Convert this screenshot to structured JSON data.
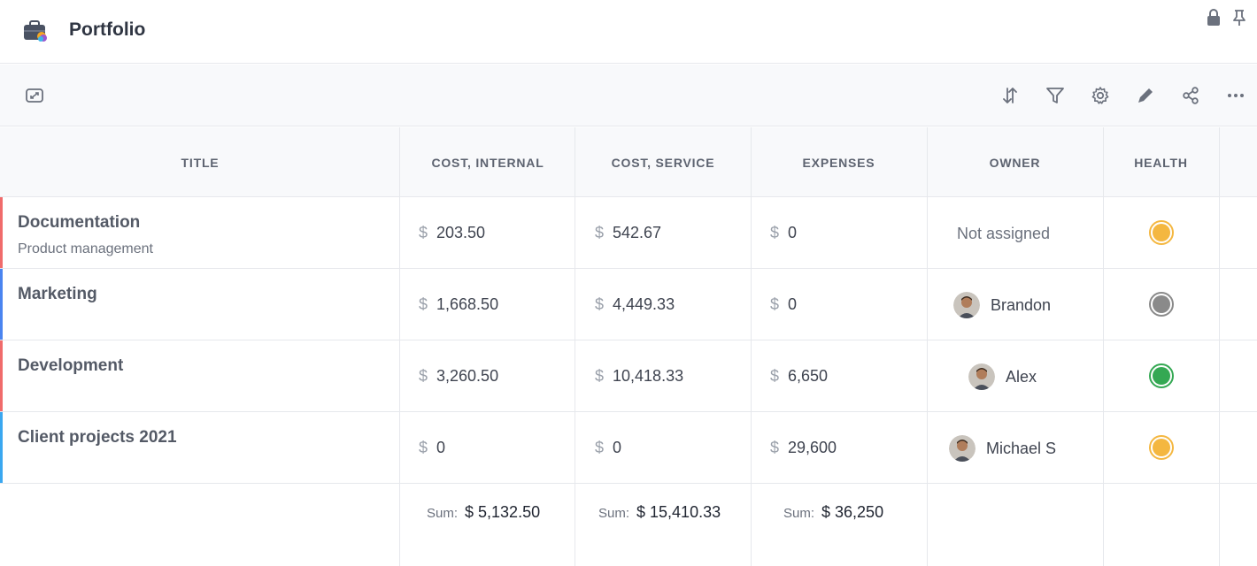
{
  "app": {
    "title": "Portfolio",
    "icon": "briefcase-icon"
  },
  "window_controls": [
    {
      "icon": "lock-icon"
    },
    {
      "icon": "pin-icon"
    }
  ],
  "toolbar": {
    "left": [
      {
        "icon": "expand-icon"
      }
    ],
    "right": [
      {
        "icon": "sort-icon"
      },
      {
        "icon": "filter-icon"
      },
      {
        "icon": "gear-icon"
      },
      {
        "icon": "pencil-icon"
      },
      {
        "icon": "share-icon"
      },
      {
        "icon": "more-icon"
      }
    ]
  },
  "table": {
    "columns": [
      "TITLE",
      "COST, INTERNAL",
      "COST, SERVICE",
      "EXPENSES",
      "OWNER",
      "HEALTH"
    ],
    "currency": "$",
    "rows": [
      {
        "title": "Documentation",
        "subtitle": "Product management",
        "accent": "#f06b6b",
        "cost_internal": "203.50",
        "cost_service": "542.67",
        "expenses": "0",
        "owner": "Not assigned",
        "owner_assigned": false,
        "health_color": "#f4b740"
      },
      {
        "title": "Marketing",
        "subtitle": "",
        "accent": "#4a84f0",
        "cost_internal": "1,668.50",
        "cost_service": "4,449.33",
        "expenses": "0",
        "owner": "Brandon",
        "owner_assigned": true,
        "health_color": "#8a8a8a"
      },
      {
        "title": "Development",
        "subtitle": "",
        "accent": "#f06b6b",
        "cost_internal": "3,260.50",
        "cost_service": "10,418.33",
        "expenses": "6,650",
        "owner": "Alex",
        "owner_assigned": true,
        "health_color": "#34a853"
      },
      {
        "title": "Client projects 2021",
        "subtitle": "",
        "accent": "#3aa7f0",
        "cost_internal": "0",
        "cost_service": "0",
        "expenses": "29,600",
        "owner": "Michael S",
        "owner_assigned": true,
        "health_color": "#f4b740"
      }
    ],
    "sums": {
      "label": "Sum:",
      "cost_internal": "$ 5,132.50",
      "cost_service": "$ 15,410.33",
      "expenses": "$ 36,250"
    }
  }
}
